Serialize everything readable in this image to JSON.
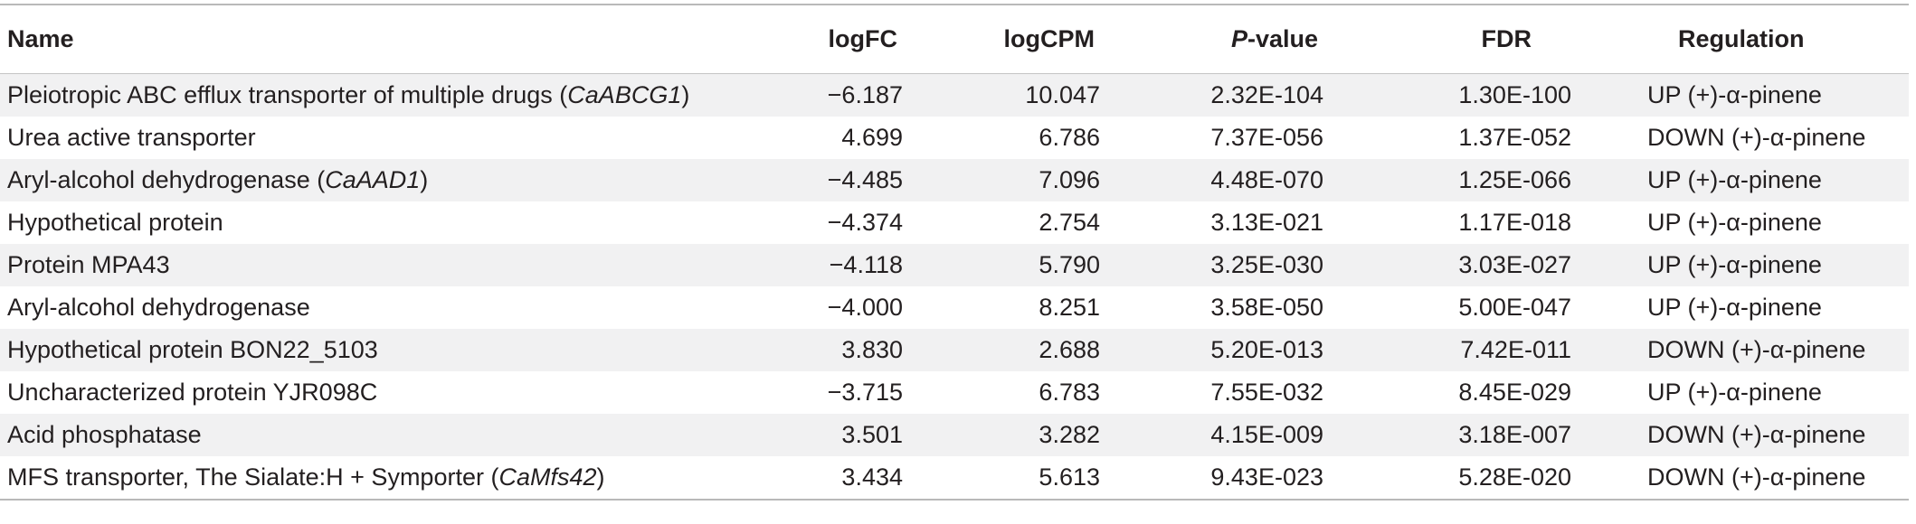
{
  "table": {
    "headers": {
      "name": "Name",
      "logfc": "logFC",
      "logcpm": "logCPM",
      "pvalue_italic": "P",
      "pvalue_rest": "-value",
      "fdr": "FDR",
      "regulation": "Regulation"
    },
    "rows": [
      {
        "name": "Pleiotropic ABC efflux transporter of multiple drugs (",
        "gene": "CaABCG1",
        "close": ")",
        "logfc": "−6.187",
        "logcpm": "10.047",
        "pvalue": "2.32E-104",
        "fdr": "1.30E-100",
        "regulation": "UP (+)-α-pinene"
      },
      {
        "name": "Urea active transporter",
        "gene": "",
        "close": "",
        "logfc": "4.699",
        "logcpm": "6.786",
        "pvalue": "7.37E-056",
        "fdr": "1.37E-052",
        "regulation": "DOWN (+)-α-pinene"
      },
      {
        "name": "Aryl-alcohol dehydrogenase (",
        "gene": "CaAAD1",
        "close": ")",
        "logfc": "−4.485",
        "logcpm": "7.096",
        "pvalue": "4.48E-070",
        "fdr": "1.25E-066",
        "regulation": "UP (+)-α-pinene"
      },
      {
        "name": "Hypothetical protein",
        "gene": "",
        "close": "",
        "logfc": "−4.374",
        "logcpm": "2.754",
        "pvalue": "3.13E-021",
        "fdr": "1.17E-018",
        "regulation": "UP (+)-α-pinene"
      },
      {
        "name": "Protein MPA43",
        "gene": "",
        "close": "",
        "logfc": "−4.118",
        "logcpm": "5.790",
        "pvalue": "3.25E-030",
        "fdr": "3.03E-027",
        "regulation": "UP (+)-α-pinene"
      },
      {
        "name": "Aryl-alcohol dehydrogenase",
        "gene": "",
        "close": "",
        "logfc": "−4.000",
        "logcpm": "8.251",
        "pvalue": "3.58E-050",
        "fdr": "5.00E-047",
        "regulation": "UP (+)-α-pinene"
      },
      {
        "name": "Hypothetical protein BON22_5103",
        "gene": "",
        "close": "",
        "logfc": "3.830",
        "logcpm": "2.688",
        "pvalue": "5.20E-013",
        "fdr": "7.42E-011",
        "regulation": "DOWN (+)-α-pinene"
      },
      {
        "name": "Uncharacterized protein YJR098C",
        "gene": "",
        "close": "",
        "logfc": "−3.715",
        "logcpm": "6.783",
        "pvalue": "7.55E-032",
        "fdr": "8.45E-029",
        "regulation": "UP (+)-α-pinene"
      },
      {
        "name": "Acid phosphatase",
        "gene": "",
        "close": "",
        "logfc": "3.501",
        "logcpm": "3.282",
        "pvalue": "4.15E-009",
        "fdr": "3.18E-007",
        "regulation": "DOWN (+)-α-pinene"
      },
      {
        "name": "MFS transporter, The Sialate:H + Symporter (",
        "gene": "CaMfs42",
        "close": ")",
        "logfc": "3.434",
        "logcpm": "5.613",
        "pvalue": "9.43E-023",
        "fdr": "5.28E-020",
        "regulation": "DOWN (+)-α-pinene"
      }
    ]
  }
}
